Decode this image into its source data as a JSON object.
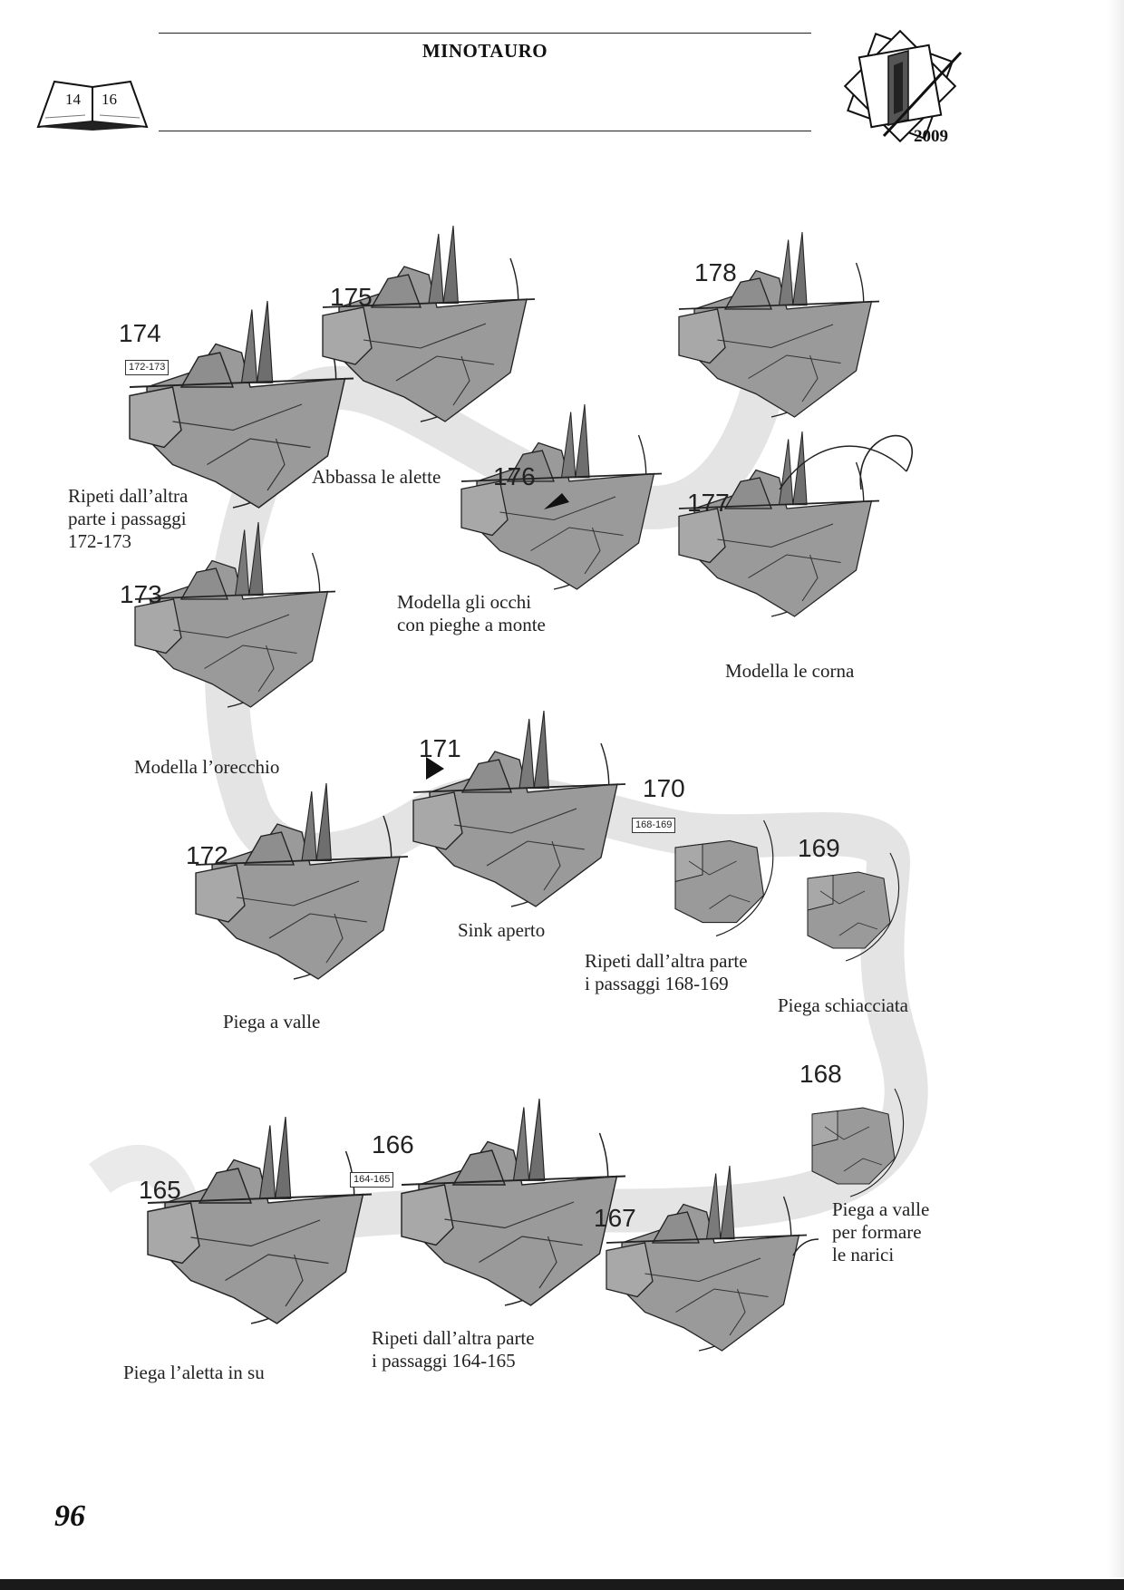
{
  "header": {
    "title": "MINOTAURO",
    "book_pages": [
      "14",
      "16"
    ],
    "year": "2009"
  },
  "page_number": "96",
  "steps": [
    {
      "id": "174",
      "ref": "172-173",
      "caption_lines": [
        "Ripeti dall’altra",
        "parte i passaggi",
        "172-173"
      ]
    },
    {
      "id": "175",
      "ref": "",
      "caption_lines": [
        "Abbassa le alette"
      ]
    },
    {
      "id": "176",
      "ref": "",
      "caption_lines": [
        "Modella gli occhi",
        "con pieghe a monte"
      ]
    },
    {
      "id": "177",
      "ref": "",
      "caption_lines": [
        "Modella le corna"
      ]
    },
    {
      "id": "178",
      "ref": "",
      "caption_lines": []
    },
    {
      "id": "173",
      "ref": "",
      "caption_lines": [
        "Modella l’orecchio"
      ]
    },
    {
      "id": "172",
      "ref": "",
      "caption_lines": [
        "Piega a valle"
      ]
    },
    {
      "id": "171",
      "ref": "",
      "caption_lines": [
        "Sink aperto"
      ]
    },
    {
      "id": "170",
      "ref": "168-169",
      "caption_lines": [
        "Ripeti dall’altra parte",
        "i passaggi 168-169"
      ]
    },
    {
      "id": "169",
      "ref": "",
      "caption_lines": [
        "Piega schiacciata"
      ]
    },
    {
      "id": "168",
      "ref": "",
      "caption_lines": [
        "Piega a valle",
        "per formare",
        "le narici"
      ]
    },
    {
      "id": "167",
      "ref": "",
      "caption_lines": []
    },
    {
      "id": "166",
      "ref": "164-165",
      "caption_lines": [
        "Ripeti dall’altra parte",
        "i passaggi 164-165"
      ]
    },
    {
      "id": "165",
      "ref": "",
      "caption_lines": [
        "Piega l’aletta in su"
      ]
    }
  ],
  "colors": {
    "paper": "#9a9a9a",
    "paper_dark": "#6e6e6e",
    "path": "#e2e2e2",
    "ink": "#222222"
  }
}
